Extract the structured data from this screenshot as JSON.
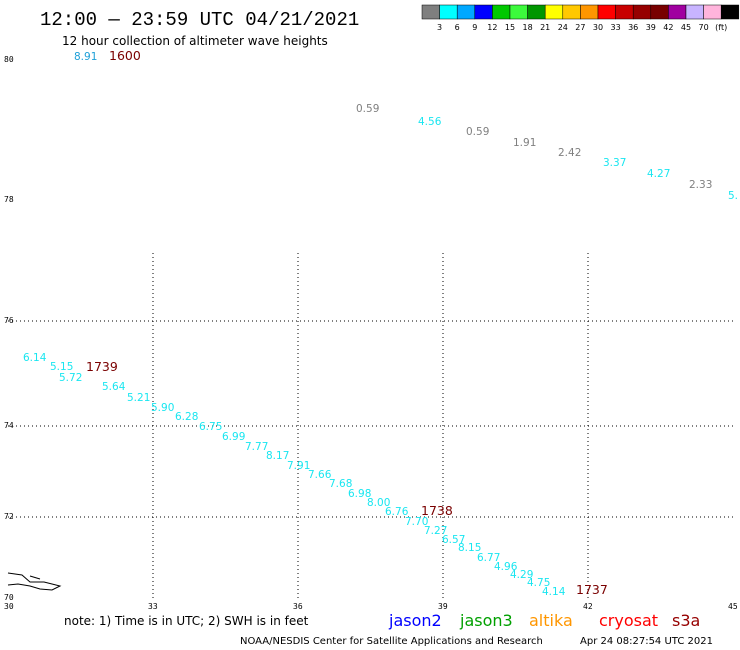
{
  "header": {
    "title": "12:00 — 23:59 UTC 04/21/2021",
    "subtitle": "12 hour collection of altimeter wave heights"
  },
  "colorbar": {
    "colors": [
      "#7f7f7f",
      "#00ffff",
      "#00a8ff",
      "#0000ff",
      "#00c800",
      "#3cfa3c",
      "#009600",
      "#ffff00",
      "#ffc800",
      "#ff9600",
      "#ff0000",
      "#c80000",
      "#960000",
      "#780000",
      "#a000a0",
      "#c8b4ff",
      "#ffb4dc",
      "#000000"
    ],
    "labels": [
      "3",
      "6",
      "9",
      "12",
      "15",
      "18",
      "21",
      "24",
      "27",
      "30",
      "33",
      "36",
      "39",
      "42",
      "45",
      "70",
      "(ft)"
    ]
  },
  "axes": {
    "x_ticks": [
      "30",
      "33",
      "36",
      "39",
      "42",
      "45"
    ],
    "y_ticks": [
      "70",
      "72",
      "74",
      "76",
      "78",
      "80"
    ]
  },
  "observations": [
    {
      "text": "8.91",
      "color": "#1ea0d8"
    },
    {
      "text": "0.59",
      "color": "#808080"
    },
    {
      "text": "4.56",
      "color": "#19e6f0"
    },
    {
      "text": "0.59",
      "color": "#808080"
    },
    {
      "text": "1.91",
      "color": "#808080"
    },
    {
      "text": "2.42",
      "color": "#808080"
    },
    {
      "text": "3.37",
      "color": "#19e6f0"
    },
    {
      "text": "4.27",
      "color": "#19e6f0"
    },
    {
      "text": "2.33",
      "color": "#808080"
    },
    {
      "text": "5.",
      "color": "#19e6f0"
    },
    {
      "text": "6.14",
      "color": "#19e6f0"
    },
    {
      "text": "5.15",
      "color": "#19e6f0"
    },
    {
      "text": "5.72",
      "color": "#19e6f0"
    },
    {
      "text": "5.64",
      "color": "#19e6f0"
    },
    {
      "text": "5.21",
      "color": "#19e6f0"
    },
    {
      "text": "5.90",
      "color": "#19e6f0"
    },
    {
      "text": "6.28",
      "color": "#19e6f0"
    },
    {
      "text": "6.75",
      "color": "#19e6f0"
    },
    {
      "text": "6.99",
      "color": "#19e6f0"
    },
    {
      "text": "7.77",
      "color": "#19e6f0"
    },
    {
      "text": "8.17",
      "color": "#19e6f0"
    },
    {
      "text": "7.91",
      "color": "#19e6f0"
    },
    {
      "text": "7.66",
      "color": "#19e6f0"
    },
    {
      "text": "7.68",
      "color": "#19e6f0"
    },
    {
      "text": "6.98",
      "color": "#19e6f0"
    },
    {
      "text": "8.00",
      "color": "#19e6f0"
    },
    {
      "text": "6.76",
      "color": "#19e6f0"
    },
    {
      "text": "7.70",
      "color": "#19e6f0"
    },
    {
      "text": "7.27",
      "color": "#19e6f0"
    },
    {
      "text": "6.57",
      "color": "#19e6f0"
    },
    {
      "text": "8.15",
      "color": "#19e6f0"
    },
    {
      "text": "6.77",
      "color": "#19e6f0"
    },
    {
      "text": "4.96",
      "color": "#19e6f0"
    },
    {
      "text": "4.29",
      "color": "#19e6f0"
    },
    {
      "text": "4.75",
      "color": "#19e6f0"
    },
    {
      "text": "4.14",
      "color": "#19e6f0"
    }
  ],
  "time_labels": [
    "1600",
    "1739",
    "1738",
    "1737"
  ],
  "note": "note:  1) Time is in UTC;  2) SWH is in feet",
  "satellites": [
    {
      "name": "jason2",
      "color": "#0000ff"
    },
    {
      "name": "jason3",
      "color": "#00a000"
    },
    {
      "name": "altika",
      "color": "#ff9600"
    },
    {
      "name": "cryosat",
      "color": "#ff0000"
    },
    {
      "name": "s3a",
      "color": "#960000"
    }
  ],
  "footer": {
    "center": "NOAA/NESDIS Center for Satellite Applications and Research",
    "timestamp": "Apr 24 08:27:54 UTC 2021"
  }
}
